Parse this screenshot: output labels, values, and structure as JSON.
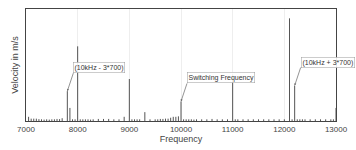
{
  "chart_data": {
    "type": "stem",
    "xlabel": "Frequency",
    "ylabel": "Velocity in m/s",
    "x": [
      7050,
      7100,
      7150,
      7200,
      7250,
      7300,
      7350,
      7400,
      7450,
      7500,
      7550,
      7600,
      7650,
      7700,
      7800,
      7850,
      7900,
      7950,
      8000,
      8050,
      8100,
      8150,
      8200,
      8250,
      8300,
      8400,
      8500,
      8600,
      8700,
      8800,
      8900,
      9000,
      9050,
      9100,
      9150,
      9200,
      9300,
      9400,
      9500,
      9550,
      9600,
      9650,
      9700,
      9750,
      9800,
      9850,
      9900,
      9950,
      10000,
      10050,
      10100,
      10150,
      10200,
      10250,
      10300,
      10400,
      10500,
      10600,
      10700,
      10800,
      10900,
      11000,
      11050,
      11100,
      11200,
      11300,
      11400,
      11500,
      11600,
      11700,
      11800,
      11900,
      12000,
      12100,
      12150,
      12200,
      12250,
      12300,
      12350,
      12400,
      12500,
      12600,
      12700,
      12800,
      12900,
      12950,
      13000
    ],
    "values": [
      0.00045,
      0.00025,
      0.00025,
      0.00025,
      0.0002,
      0.00018,
      0.00015,
      0.00018,
      0.00015,
      0.00018,
      0.00018,
      0.00022,
      0.0002,
      0.0003,
      0.0032,
      0.0014,
      0.00018,
      0.00018,
      0.008,
      0.00018,
      0.00018,
      0.00018,
      0.00018,
      0.00015,
      0.00018,
      0.00022,
      0.00022,
      0.00022,
      0.00018,
      0.00018,
      0.00045,
      0.0045,
      0.00018,
      0.00018,
      0.00018,
      0.00018,
      0.00095,
      0.00018,
      0.00018,
      0.00018,
      0.00022,
      0.00022,
      0.00025,
      0.00025,
      0.00035,
      0.00045,
      0.00045,
      0.0005,
      0.0021,
      0.00018,
      0.00018,
      0.00018,
      0.00018,
      0.00015,
      0.00018,
      0.00018,
      0.00018,
      0.00022,
      0.00018,
      0.00018,
      0.00018,
      0.005,
      0.00018,
      0.00018,
      0.00018,
      0.00018,
      0.00018,
      0.00018,
      0.00018,
      0.00018,
      0.00018,
      0.00018,
      0.00018,
      0.011,
      0.00018,
      0.0038,
      0.00018,
      0.00018,
      0.00018,
      0.00018,
      0.00018,
      0.00018,
      0.00018,
      0.00018,
      0.00018,
      0.00018,
      0.0014
    ],
    "color": "#2a2a2a",
    "xlim": [
      7000,
      13000
    ],
    "ylim": [
      0,
      0.012
    ],
    "xticks": [
      7000,
      8000,
      9000,
      10000,
      11000,
      12000,
      13000
    ],
    "yticks": [],
    "grid": true,
    "tick_labels": "x",
    "annotations": [
      {
        "text": "(10kHz - 3*700)",
        "x": 7800,
        "y": 0.0032
      },
      {
        "text": "Switching Frequency",
        "x": 10000,
        "y": 0.0021
      },
      {
        "text": "(10kHz + 3*700)",
        "x": 12200,
        "y": 0.0038
      }
    ]
  }
}
